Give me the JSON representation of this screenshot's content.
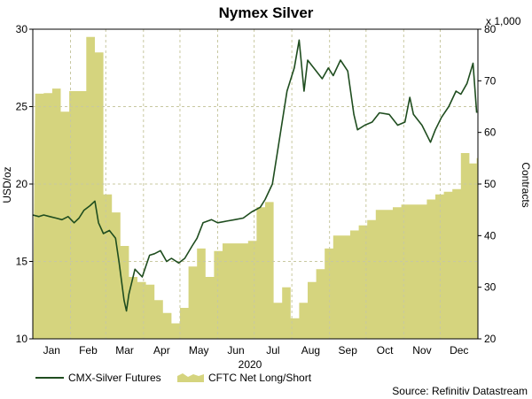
{
  "chart_data": {
    "type": "line",
    "title": "Nymex Silver",
    "xlabel": "2020",
    "ylabel": "USD/oz",
    "y2label": "Contracts",
    "y2_multiplier_label": "x 1,000",
    "source": "Source: Refinitiv Datastream",
    "months": [
      "Jan",
      "Feb",
      "Mar",
      "Apr",
      "May",
      "Jun",
      "Jul",
      "Aug",
      "Sep",
      "Oct",
      "Nov",
      "Dec"
    ],
    "ylim": [
      10,
      30
    ],
    "yticks": [
      10,
      15,
      20,
      25,
      30
    ],
    "y2lim": [
      20,
      80
    ],
    "y2ticks": [
      20,
      30,
      40,
      50,
      60,
      70,
      80
    ],
    "grid": true,
    "legend_position": "bottom-left",
    "colors": {
      "line": "#1f4d1f",
      "area": "#d5d47e",
      "grid": "#c8c8a0"
    },
    "series": [
      {
        "name": "CMX-Silver Futures",
        "type": "line",
        "axis": "left",
        "x": [
          "2020-01-01",
          "2020-01-06",
          "2020-01-10",
          "2020-01-15",
          "2020-01-20",
          "2020-01-25",
          "2020-01-30",
          "2020-02-04",
          "2020-02-08",
          "2020-02-12",
          "2020-02-17",
          "2020-02-21",
          "2020-02-24",
          "2020-02-28",
          "2020-03-04",
          "2020-03-09",
          "2020-03-12",
          "2020-03-16",
          "2020-03-18",
          "2020-03-20",
          "2020-03-25",
          "2020-03-31",
          "2020-04-06",
          "2020-04-10",
          "2020-04-15",
          "2020-04-20",
          "2020-04-24",
          "2020-04-30",
          "2020-05-05",
          "2020-05-11",
          "2020-05-15",
          "2020-05-20",
          "2020-05-27",
          "2020-06-01",
          "2020-06-08",
          "2020-06-15",
          "2020-06-22",
          "2020-06-29",
          "2020-07-06",
          "2020-07-10",
          "2020-07-16",
          "2020-07-21",
          "2020-07-24",
          "2020-07-28",
          "2020-08-03",
          "2020-08-07",
          "2020-08-11",
          "2020-08-14",
          "2020-08-20",
          "2020-08-26",
          "2020-08-31",
          "2020-09-04",
          "2020-09-10",
          "2020-09-16",
          "2020-09-21",
          "2020-09-24",
          "2020-09-30",
          "2020-10-06",
          "2020-10-12",
          "2020-10-20",
          "2020-10-27",
          "2020-11-02",
          "2020-11-06",
          "2020-11-09",
          "2020-11-16",
          "2020-11-23",
          "2020-11-27",
          "2020-12-02",
          "2020-12-08",
          "2020-12-14",
          "2020-12-18",
          "2020-12-23",
          "2020-12-28",
          "2020-12-31"
        ],
        "values": [
          18.0,
          17.9,
          18.0,
          17.9,
          17.8,
          17.7,
          17.9,
          17.5,
          17.8,
          18.3,
          18.6,
          18.9,
          17.5,
          16.8,
          17.0,
          16.5,
          14.9,
          12.5,
          11.8,
          12.9,
          14.5,
          14.0,
          15.4,
          15.5,
          15.7,
          15.0,
          15.2,
          14.9,
          15.2,
          16.0,
          16.5,
          17.5,
          17.7,
          17.5,
          17.6,
          17.7,
          17.8,
          18.2,
          18.5,
          19.0,
          20.0,
          22.5,
          24.0,
          26.0,
          27.5,
          29.3,
          26.0,
          28.0,
          27.4,
          26.8,
          27.5,
          27.0,
          28.0,
          27.3,
          24.5,
          23.5,
          23.8,
          24.0,
          24.6,
          24.5,
          23.8,
          24.0,
          25.6,
          24.5,
          23.8,
          22.7,
          23.5,
          24.3,
          25.0,
          26.0,
          25.8,
          26.5,
          27.8,
          24.6
        ]
      },
      {
        "name": "CFTC Net Long/Short",
        "type": "area",
        "axis": "right",
        "x": [
          "2020-01-03",
          "2020-01-10",
          "2020-01-17",
          "2020-01-24",
          "2020-01-31",
          "2020-02-07",
          "2020-02-14",
          "2020-02-21",
          "2020-02-28",
          "2020-03-06",
          "2020-03-13",
          "2020-03-20",
          "2020-03-27",
          "2020-04-03",
          "2020-04-10",
          "2020-04-17",
          "2020-04-24",
          "2020-05-01",
          "2020-05-08",
          "2020-05-15",
          "2020-05-22",
          "2020-05-29",
          "2020-06-05",
          "2020-06-12",
          "2020-06-19",
          "2020-06-26",
          "2020-07-03",
          "2020-07-10",
          "2020-07-17",
          "2020-07-24",
          "2020-07-31",
          "2020-08-07",
          "2020-08-14",
          "2020-08-21",
          "2020-08-28",
          "2020-09-04",
          "2020-09-11",
          "2020-09-18",
          "2020-09-25",
          "2020-10-02",
          "2020-10-09",
          "2020-10-16",
          "2020-10-23",
          "2020-10-30",
          "2020-11-06",
          "2020-11-13",
          "2020-11-20",
          "2020-11-27",
          "2020-12-04",
          "2020-12-11",
          "2020-12-18",
          "2020-12-25",
          "2020-12-31"
        ],
        "values": [
          67.5,
          67.6,
          68.5,
          64.0,
          68.0,
          68.0,
          78.5,
          75.5,
          48.0,
          44.5,
          38.0,
          32.0,
          31.0,
          30.5,
          27.5,
          25.0,
          23.0,
          26.0,
          34.0,
          37.5,
          32.0,
          37.0,
          38.5,
          38.5,
          38.5,
          39.0,
          45.5,
          46.5,
          27.0,
          30.0,
          24.0,
          27.0,
          31.0,
          33.5,
          37.5,
          40.0,
          40.0,
          41.0,
          42.0,
          43.0,
          45.0,
          45.0,
          45.5,
          46.0,
          46.0,
          46.0,
          47.0,
          48.0,
          48.5,
          49.0,
          56.0,
          54.0,
          55.0
        ]
      }
    ]
  }
}
